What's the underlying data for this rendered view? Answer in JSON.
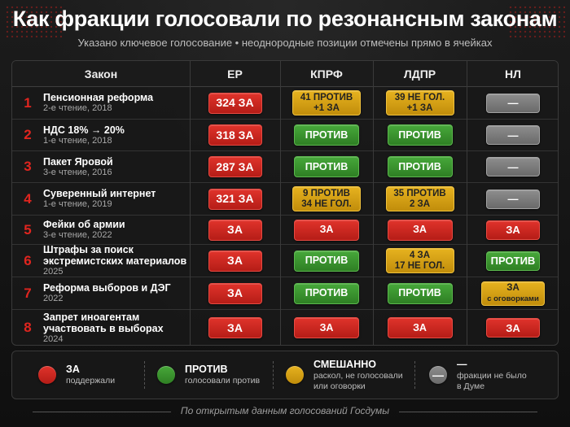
{
  "title": "Как фракции голосовали по резонансным законам",
  "subtitle": "Указано ключевое голосование • неоднородные позиции отмечены прямо в ячейках",
  "colors": {
    "za": "#d1281f",
    "protiv": "#3a9330",
    "mixed": "#d6a015",
    "none": "#7a7a7a",
    "number": "#e0251f"
  },
  "headers": {
    "law": "Закон",
    "er": "ЕР",
    "kprf": "КПРФ",
    "ldpr": "ЛДПР",
    "nl": "НЛ"
  },
  "rows": [
    {
      "num": "1",
      "name": "Пенсионная реформа",
      "sub": "2-е чтение, 2018",
      "er": {
        "l1": "324 ЗА",
        "l2": ""
      },
      "kprf": {
        "l1": "41 ПРОТИВ",
        "l2": "+1 ЗА"
      },
      "ldpr": {
        "l1": "39 НЕ ГОЛ.",
        "l2": "+1 ЗА"
      },
      "nl": {
        "l1": "—",
        "l2": ""
      }
    },
    {
      "num": "2",
      "name": "НДС 18% → 20%",
      "sub": "1-е чтение, 2018",
      "er": {
        "l1": "318 ЗА",
        "l2": ""
      },
      "kprf": {
        "l1": "ПРОТИВ",
        "l2": ""
      },
      "ldpr": {
        "l1": "ПРОТИВ",
        "l2": ""
      },
      "nl": {
        "l1": "—",
        "l2": ""
      }
    },
    {
      "num": "3",
      "name": "Пакет Яровой",
      "sub": "3-е чтение, 2016",
      "er": {
        "l1": "287 ЗА",
        "l2": ""
      },
      "kprf": {
        "l1": "ПРОТИВ",
        "l2": ""
      },
      "ldpr": {
        "l1": "ПРОТИВ",
        "l2": ""
      },
      "nl": {
        "l1": "—",
        "l2": ""
      }
    },
    {
      "num": "4",
      "name": "Суверенный интернет",
      "sub": "1-е чтение, 2019",
      "er": {
        "l1": "321 ЗА",
        "l2": ""
      },
      "kprf": {
        "l1": "9 ПРОТИВ",
        "l2": "34 НЕ ГОЛ."
      },
      "ldpr": {
        "l1": "35 ПРОТИВ",
        "l2": "2 ЗА"
      },
      "nl": {
        "l1": "—",
        "l2": ""
      }
    },
    {
      "num": "5",
      "name": "Фейки об армии",
      "sub": "3-е чтение, 2022",
      "er": {
        "l1": "ЗА",
        "l2": ""
      },
      "kprf": {
        "l1": "ЗА",
        "l2": ""
      },
      "ldpr": {
        "l1": "ЗА",
        "l2": ""
      },
      "nl": {
        "l1": "ЗА",
        "l2": ""
      }
    },
    {
      "num": "6",
      "name": "Штрафы за поиск экстремистских материалов",
      "sub": "2025",
      "er": {
        "l1": "ЗА",
        "l2": ""
      },
      "kprf": {
        "l1": "ПРОТИВ",
        "l2": ""
      },
      "ldpr": {
        "l1": "4 ЗА",
        "l2": "17 НЕ ГОЛ."
      },
      "nl": {
        "l1": "ПРОТИВ",
        "l2": ""
      }
    },
    {
      "num": "7",
      "name": "Реформа выборов и ДЭГ",
      "sub": "2022",
      "er": {
        "l1": "ЗА",
        "l2": ""
      },
      "kprf": {
        "l1": "ПРОТИВ",
        "l2": ""
      },
      "ldpr": {
        "l1": "ПРОТИВ",
        "l2": ""
      },
      "nl": {
        "l1": "ЗА",
        "l2": "с оговорками"
      }
    },
    {
      "num": "8",
      "name": "Запрет иноагентам участвовать в выборах",
      "sub": "2024",
      "er": {
        "l1": "ЗА",
        "l2": ""
      },
      "kprf": {
        "l1": "ЗА",
        "l2": ""
      },
      "ldpr": {
        "l1": "ЗА",
        "l2": ""
      },
      "nl": {
        "l1": "ЗА",
        "l2": ""
      }
    }
  ],
  "legend": [
    {
      "icon": "red-dot-icon",
      "title": "ЗА",
      "desc": "поддержали",
      "desc2": "",
      "symbol": ""
    },
    {
      "icon": "green-dot-icon",
      "title": "ПРОТИВ",
      "desc": "голосовали против",
      "desc2": "",
      "symbol": ""
    },
    {
      "icon": "yellow-dot-icon",
      "title": "СМЕШАННО",
      "desc": "раскол, не голосовали",
      "desc2": "или оговорки",
      "symbol": ""
    },
    {
      "icon": "gray-dash-icon",
      "title": "—",
      "desc": "фракции не было",
      "desc2": "в Думе",
      "symbol": "—"
    }
  ],
  "footer": "По открытым данным голосований Госдумы"
}
